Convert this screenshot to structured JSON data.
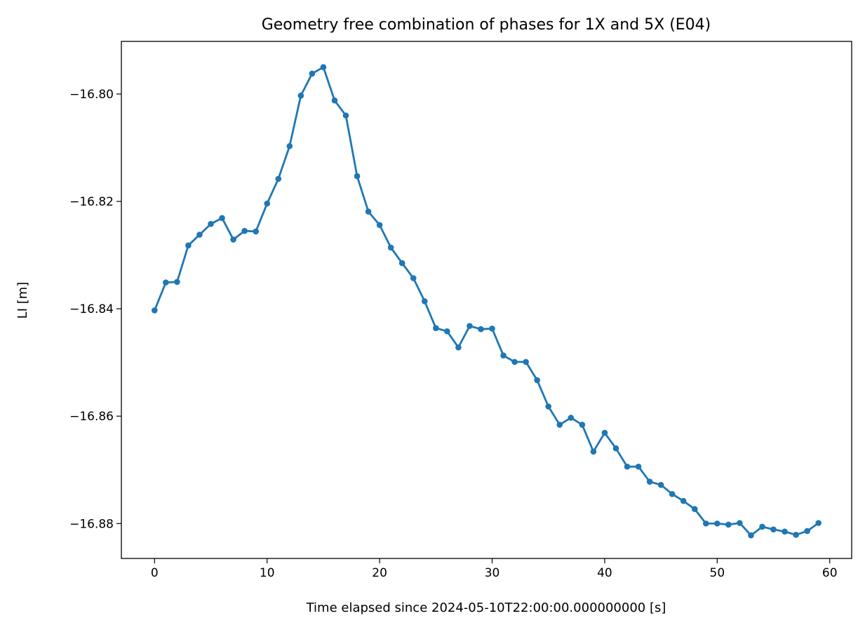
{
  "chart_data": {
    "type": "line",
    "title": "Geometry free combination of phases for 1X and 5X (E04)",
    "xlabel": "Time elapsed since 2024-05-10T22:00:00.000000000 [s]",
    "ylabel": "LI [m]",
    "xlim": [
      -2.95,
      61.95
    ],
    "ylim": [
      -16.8865,
      -16.7902
    ],
    "x_ticks": [
      0,
      10,
      20,
      30,
      40,
      50,
      60
    ],
    "x_tick_labels": [
      "0",
      "10",
      "20",
      "30",
      "40",
      "50",
      "60"
    ],
    "y_ticks": [
      -16.8,
      -16.82,
      -16.84,
      -16.86,
      -16.88
    ],
    "y_tick_labels": [
      "−16.80",
      "−16.82",
      "−16.84",
      "−16.86",
      "−16.88"
    ],
    "grid": false,
    "legend": false,
    "series": [
      {
        "color": "#1f77b4",
        "marker": "circle",
        "x": [
          0,
          1,
          2,
          3,
          4,
          5,
          6,
          7,
          8,
          9,
          10,
          11,
          12,
          13,
          14,
          15,
          16,
          17,
          18,
          19,
          20,
          21,
          22,
          23,
          24,
          25,
          26,
          27,
          28,
          29,
          30,
          31,
          32,
          33,
          34,
          35,
          36,
          37,
          38,
          39,
          40,
          41,
          42,
          43,
          44,
          45,
          46,
          47,
          48,
          49,
          50,
          51,
          52,
          53,
          54,
          55,
          56,
          57,
          58,
          59
        ],
        "y": [
          -16.8403,
          -16.8351,
          -16.835,
          -16.8282,
          -16.8262,
          -16.8242,
          -16.8231,
          -16.8271,
          -16.8255,
          -16.8256,
          -16.8204,
          -16.8158,
          -16.8097,
          -16.8003,
          -16.7962,
          -16.795,
          -16.8012,
          -16.804,
          -16.8153,
          -16.8219,
          -16.8244,
          -16.8286,
          -16.8315,
          -16.8343,
          -16.8386,
          -16.8436,
          -16.8442,
          -16.8472,
          -16.8432,
          -16.8438,
          -16.8437,
          -16.8487,
          -16.8499,
          -16.8499,
          -16.8533,
          -16.8582,
          -16.8616,
          -16.8603,
          -16.8616,
          -16.8666,
          -16.8631,
          -16.866,
          -16.8694,
          -16.8694,
          -16.8722,
          -16.8728,
          -16.8745,
          -16.8758,
          -16.8773,
          -16.88,
          -16.88,
          -16.8802,
          -16.8799,
          -16.8822,
          -16.8806,
          -16.8811,
          -16.8815,
          -16.8821,
          -16.8814,
          -16.8799
        ]
      }
    ]
  }
}
